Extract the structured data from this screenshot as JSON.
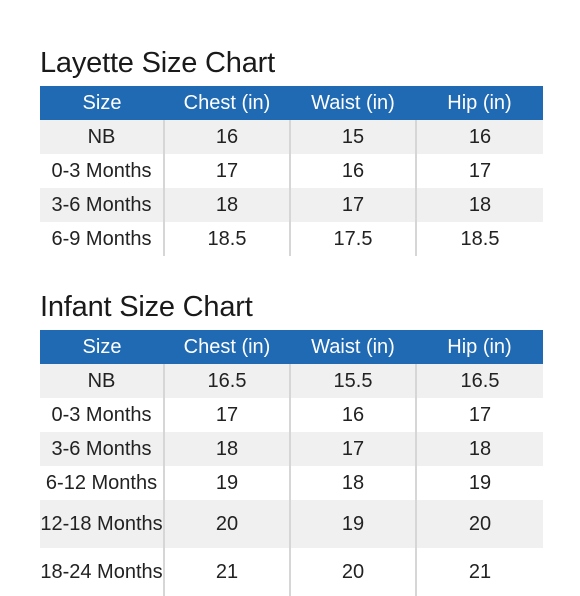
{
  "layette": {
    "title": "Layette Size Chart",
    "headers": [
      "Size",
      "Chest (in)",
      "Waist (in)",
      "Hip (in)"
    ],
    "rows": [
      [
        "NB",
        "16",
        "15",
        "16"
      ],
      [
        "0-3 Months",
        "17",
        "16",
        "17"
      ],
      [
        "3-6 Months",
        "18",
        "17",
        "18"
      ],
      [
        "6-9 Months",
        "18.5",
        "17.5",
        "18.5"
      ]
    ]
  },
  "infant": {
    "title": "Infant Size Chart",
    "headers": [
      "Size",
      "Chest (in)",
      "Waist (in)",
      "Hip (in)"
    ],
    "rows": [
      [
        "NB",
        "16.5",
        "15.5",
        "16.5"
      ],
      [
        "0-3 Months",
        "17",
        "16",
        "17"
      ],
      [
        "3-6 Months",
        "18",
        "17",
        "18"
      ],
      [
        "6-12 Months",
        "19",
        "18",
        "19"
      ],
      [
        "12-18 Months",
        "20",
        "19",
        "20"
      ],
      [
        "18-24 Months",
        "21",
        "20",
        "21"
      ]
    ]
  },
  "colors": {
    "header_bg": "#1f6ab3",
    "header_text": "#ffffff",
    "row_alt_bg": "#f0f0f0"
  }
}
